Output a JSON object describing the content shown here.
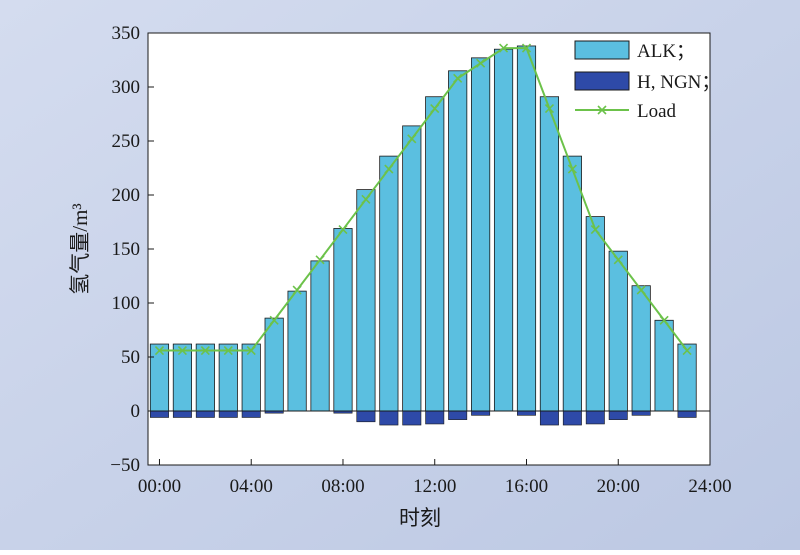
{
  "chart_data": {
    "type": "bar",
    "title": "",
    "xlabel": "时刻",
    "ylabel": "氢气量/m³",
    "ylim": [
      -50,
      350
    ],
    "yticks": [
      -50,
      0,
      50,
      100,
      150,
      200,
      250,
      300,
      350
    ],
    "ytick_labels": [
      "−50",
      "0",
      "50",
      "100",
      "150",
      "200",
      "250",
      "300",
      "350"
    ],
    "xlim": [
      -0.5,
      24
    ],
    "xticks": [
      0,
      4,
      8,
      12,
      16,
      20,
      24
    ],
    "xtick_labels": [
      "00:00",
      "04:00",
      "08:00",
      "12:00",
      "16:00",
      "20:00",
      "24:00"
    ],
    "x": [
      0,
      1,
      2,
      3,
      4,
      5,
      6,
      7,
      8,
      9,
      10,
      11,
      12,
      13,
      14,
      15,
      16,
      17,
      18,
      19,
      20,
      21,
      22,
      23
    ],
    "series": [
      {
        "name": "ALK；",
        "type": "bar",
        "color": "#5bbfe0",
        "values": [
          62,
          62,
          62,
          62,
          62,
          86,
          111,
          139,
          169,
          205,
          236,
          264,
          291,
          315,
          327,
          335,
          338,
          291,
          236,
          180,
          148,
          116,
          84,
          62
        ]
      },
      {
        "name": "H, NGN；",
        "type": "bar",
        "color": "#2e4aa8",
        "values": [
          -6,
          -6,
          -6,
          -6,
          -6,
          -2,
          0,
          0,
          -2,
          -10,
          -13,
          -13,
          -12,
          -8,
          -4,
          0,
          -4,
          -13,
          -13,
          -12,
          -8,
          -4,
          0,
          -6
        ]
      },
      {
        "name": "Load",
        "type": "line",
        "color": "#6cc24a",
        "marker": "x",
        "values": [
          56,
          56,
          56,
          56,
          56,
          84,
          112,
          140,
          168,
          196,
          224,
          252,
          280,
          308,
          322,
          336,
          336,
          280,
          224,
          168,
          140,
          112,
          84,
          56
        ]
      }
    ],
    "legend": "top-right",
    "grid": false,
    "background": "#c7d1e8",
    "plot_background": "#ffffff"
  }
}
